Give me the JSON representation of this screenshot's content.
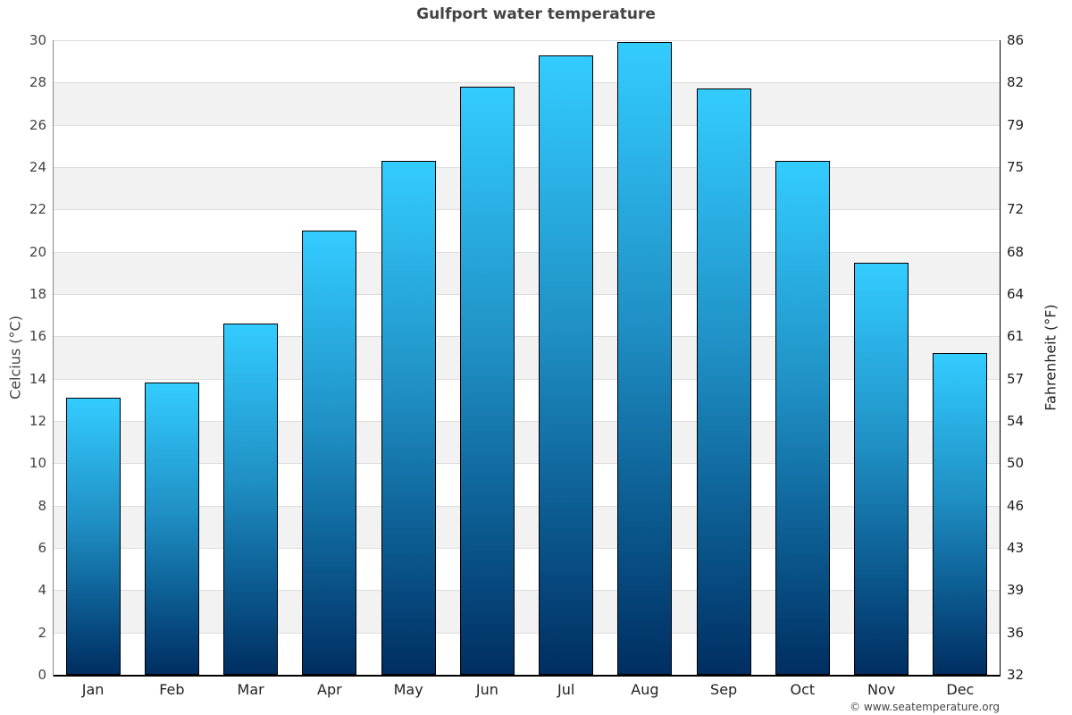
{
  "title": "Gulfport water temperature",
  "credit": "© www.seatemperature.org",
  "colors": {
    "bar_top": "#33ccff",
    "bar_bottom": "#002e62",
    "bar_border": "#000000",
    "band": "#f2f2f2",
    "grid": "#dddddd",
    "title": "#444444"
  },
  "axes": {
    "left_label": "Celcius (°C)",
    "right_label": "Fahrenheit (°F)",
    "left_ticks": [
      "0",
      "2",
      "4",
      "6",
      "8",
      "10",
      "12",
      "14",
      "16",
      "18",
      "20",
      "22",
      "24",
      "26",
      "28",
      "30"
    ],
    "right_ticks": [
      "32",
      "36",
      "39",
      "43",
      "46",
      "50",
      "54",
      "57",
      "61",
      "64",
      "68",
      "72",
      "75",
      "79",
      "82",
      "86"
    ],
    "x_ticks": [
      "Jan",
      "Feb",
      "Mar",
      "Apr",
      "May",
      "Jun",
      "Jul",
      "Aug",
      "Sep",
      "Oct",
      "Nov",
      "Dec"
    ]
  },
  "chart_data": {
    "type": "bar",
    "title": "Gulfport water temperature",
    "xlabel": "",
    "ylabel": "Celcius (°C)",
    "ylabel_right": "Fahrenheit (°F)",
    "categories": [
      "Jan",
      "Feb",
      "Mar",
      "Apr",
      "May",
      "Jun",
      "Jul",
      "Aug",
      "Sep",
      "Oct",
      "Nov",
      "Dec"
    ],
    "series": [
      {
        "name": "Water temperature (°C)",
        "values": [
          13.1,
          13.8,
          16.6,
          21.0,
          24.3,
          27.8,
          29.3,
          29.9,
          27.7,
          24.3,
          19.5,
          15.2
        ]
      }
    ],
    "ylim": [
      0,
      30
    ],
    "ylim_right": [
      32,
      86
    ],
    "yticks": [
      0,
      2,
      4,
      6,
      8,
      10,
      12,
      14,
      16,
      18,
      20,
      22,
      24,
      26,
      28,
      30
    ],
    "yticks_right": [
      32,
      36,
      39,
      43,
      46,
      50,
      54,
      57,
      61,
      64,
      68,
      72,
      75,
      79,
      82,
      86
    ],
    "grid": true,
    "alternating_bands": true,
    "legend": "none",
    "annotations": [
      "© www.seatemperature.org"
    ]
  }
}
